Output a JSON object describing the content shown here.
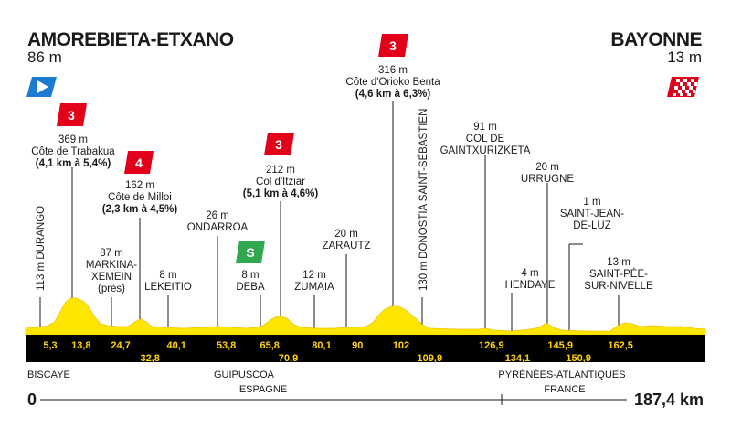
{
  "start": {
    "name": "AMOREBIETA-ETXANO",
    "altitude": "86 m"
  },
  "finish": {
    "name": "BAYONNE",
    "altitude": "13 m"
  },
  "climbs": [
    {
      "category": "3",
      "altitude": "369 m",
      "name": "Côte de Trabakua",
      "detail": "(4,1 km à 5,4%)"
    },
    {
      "category": "4",
      "altitude": "162 m",
      "name": "Côte de Milloi",
      "detail": "(2,3 km à 4,5%)"
    },
    {
      "category": "3",
      "altitude": "212 m",
      "name": "Col d'Itziar",
      "detail": "(5,1 km à 4,6%)"
    },
    {
      "category": "3",
      "altitude": "316 m",
      "name": "Côte d'Orioko Benta",
      "detail": "(4,6 km à 6,3%)"
    }
  ],
  "sprint": {
    "label": "S",
    "altitude": "8 m",
    "name": "DEBA"
  },
  "places": {
    "durango": "113 m DURANGO",
    "markina_alt": "87 m",
    "markina_1": "MARKINA-",
    "markina_2": "XEMEIN",
    "markina_3": "(près)",
    "lekeitio_alt": "8 m",
    "lekeitio": "LEKEITIO",
    "ondarroa_alt": "26 m",
    "ondarroa": "ONDARROA",
    "zumaia_alt": "12 m",
    "zumaia": "ZUMAIA",
    "zarautz_alt": "20 m",
    "zarautz": "ZARAUTZ",
    "donostia": "130 m DONOSTIA SAINT-SÉBASTIEN",
    "gaintx_alt": "91 m",
    "gaintx_1": "COL DE",
    "gaintx_2": "GAINTXURIZKETA",
    "hendaye_alt": "4 m",
    "hendaye": "HENDAYE",
    "urrugne_alt": "20 m",
    "urrugne": "URRUGNE",
    "sjdl_alt": "1 m",
    "sjdl_1": "SAINT-JEAN-",
    "sjdl_2": "DE-LUZ",
    "spsn_alt": "13 m",
    "spsn_1": "SAINT-PÉE-",
    "spsn_2": "SUR-NIVELLE"
  },
  "km_marks": [
    {
      "km": 5.3,
      "label": "5,3"
    },
    {
      "km": 13.8,
      "label": "13,8"
    },
    {
      "km": 24.7,
      "label": "24,7"
    },
    {
      "km": 32.8,
      "label": "32,8"
    },
    {
      "km": 40.1,
      "label": "40,1"
    },
    {
      "km": 53.8,
      "label": "53,8"
    },
    {
      "km": 65.8,
      "label": "65,8"
    },
    {
      "km": 70.9,
      "label": "70,9"
    },
    {
      "km": 80.1,
      "label": "80,1"
    },
    {
      "km": 90,
      "label": "90"
    },
    {
      "km": 102,
      "label": "102"
    },
    {
      "km": 109.9,
      "label": "109,9"
    },
    {
      "km": 126.9,
      "label": "126,9"
    },
    {
      "km": 134.1,
      "label": "134,1"
    },
    {
      "km": 145.9,
      "label": "145,9"
    },
    {
      "km": 150.9,
      "label": "150,9"
    },
    {
      "km": 162.5,
      "label": "162,5"
    }
  ],
  "regions": {
    "r1": "BISCAYE",
    "r2": "GUIPUSCOA",
    "r3": "PYRÉNÉES-ATLANTIQUES"
  },
  "countries": {
    "c1": "ESPAGNE",
    "c2": "FRANCE"
  },
  "distance": {
    "start": "0",
    "end": "187,4 km"
  },
  "colors": {
    "profile": "#ffe600",
    "band": "#000000",
    "km_text": "#ffd500",
    "climb_badge": "#e3001b",
    "sprint_badge": "#2fa84f",
    "start_flag": "#1a7bd1"
  }
}
